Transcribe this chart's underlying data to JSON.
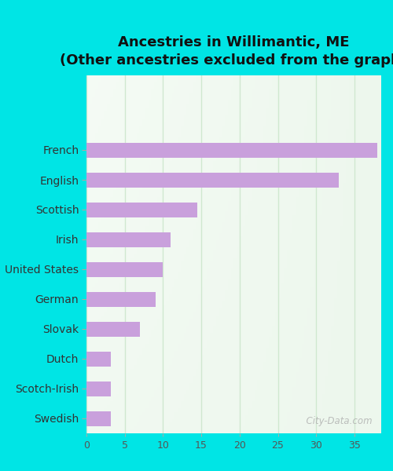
{
  "title_line1": "Ancestries in Willimantic, ME",
  "title_line2": "(Other ancestries excluded from the graph)",
  "categories": [
    "French",
    "English",
    "Scottish",
    "Irish",
    "United States",
    "German",
    "Slovak",
    "Dutch",
    "Scotch-Irish",
    "Swedish"
  ],
  "values": [
    38,
    33,
    14.5,
    11,
    10,
    9,
    7,
    3.2,
    3.2,
    3.2
  ],
  "bar_color": "#c9a0dc",
  "background_color": "#00e5e5",
  "plot_bg_color": "#eef5ee",
  "xlabel": "",
  "xlim": [
    0,
    38.5
  ],
  "xticks": [
    0,
    5,
    10,
    15,
    20,
    25,
    30,
    35
  ],
  "grid_color": "#d0e8d0",
  "watermark": "City-Data.com",
  "title_fontsize": 13,
  "label_fontsize": 10,
  "bar_height": 0.5
}
